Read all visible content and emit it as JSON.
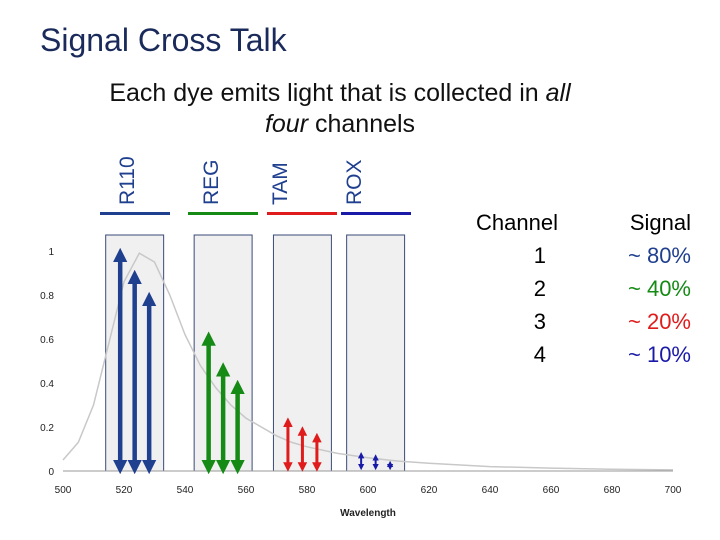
{
  "title": "Signal Cross Talk",
  "subtitle": {
    "text_before": "Each dye emits light that is collected in ",
    "italic_all": "all",
    "italic_four": "four",
    "text_after": " channels"
  },
  "channels": [
    {
      "name": "R110",
      "color": "#1f3f8f",
      "signal_color": "#1f3f8f"
    },
    {
      "name": "REG",
      "color": "#158a15",
      "signal_color": "#158a15"
    },
    {
      "name": "TAM",
      "color": "#e01b1b",
      "signal_color": "#e01b1b"
    },
    {
      "name": "ROX",
      "color": "#1a1aa8",
      "signal_color": "#1a1aa8"
    }
  ],
  "table": {
    "header_channel": "Channel",
    "header_signal": "Signal",
    "rows": [
      {
        "channel": "1",
        "signal": "~ 80%",
        "color": "#1f3f8f"
      },
      {
        "channel": "2",
        "signal": "~ 40%",
        "color": "#158a15"
      },
      {
        "channel": "3",
        "signal": "~ 20%",
        "color": "#e01b1b"
      },
      {
        "channel": "4",
        "signal": "~ 10%",
        "color": "#1a1aa8"
      }
    ]
  },
  "chart_data": {
    "type": "line",
    "xlabel": "Wavelength",
    "ylabel": "",
    "xlim": [
      500,
      700
    ],
    "ylim": [
      0,
      1
    ],
    "x_ticks": [
      500,
      520,
      540,
      560,
      580,
      600,
      620,
      640,
      660,
      680,
      700
    ],
    "y_ticks": [
      0,
      0.2,
      0.4,
      0.6,
      0.8,
      1
    ],
    "series": [
      {
        "x": [
          500,
          505,
          510,
          515,
          520,
          525,
          530,
          535,
          540,
          545,
          550,
          555,
          560,
          565,
          570,
          575,
          580,
          590,
          600,
          610,
          620,
          640,
          660,
          680,
          700
        ],
        "y": [
          0.05,
          0.13,
          0.3,
          0.58,
          0.86,
          0.99,
          0.95,
          0.8,
          0.62,
          0.48,
          0.38,
          0.3,
          0.24,
          0.2,
          0.16,
          0.13,
          0.11,
          0.08,
          0.06,
          0.045,
          0.035,
          0.02,
          0.013,
          0.008,
          0.005
        ]
      }
    ],
    "channel_windows": [
      {
        "channel": "R110",
        "from": 514,
        "to": 533,
        "arrow_levels": [
          1.0,
          0.9,
          0.8
        ]
      },
      {
        "channel": "REG",
        "from": 543,
        "to": 562,
        "arrow_levels": [
          0.62,
          0.48,
          0.4
        ]
      },
      {
        "channel": "TAM",
        "from": 569,
        "to": 588,
        "arrow_levels": [
          0.24,
          0.2,
          0.17
        ]
      },
      {
        "channel": "ROX",
        "from": 593,
        "to": 612,
        "arrow_levels": [
          0.09,
          0.08,
          0.05
        ]
      }
    ],
    "grid": false
  }
}
